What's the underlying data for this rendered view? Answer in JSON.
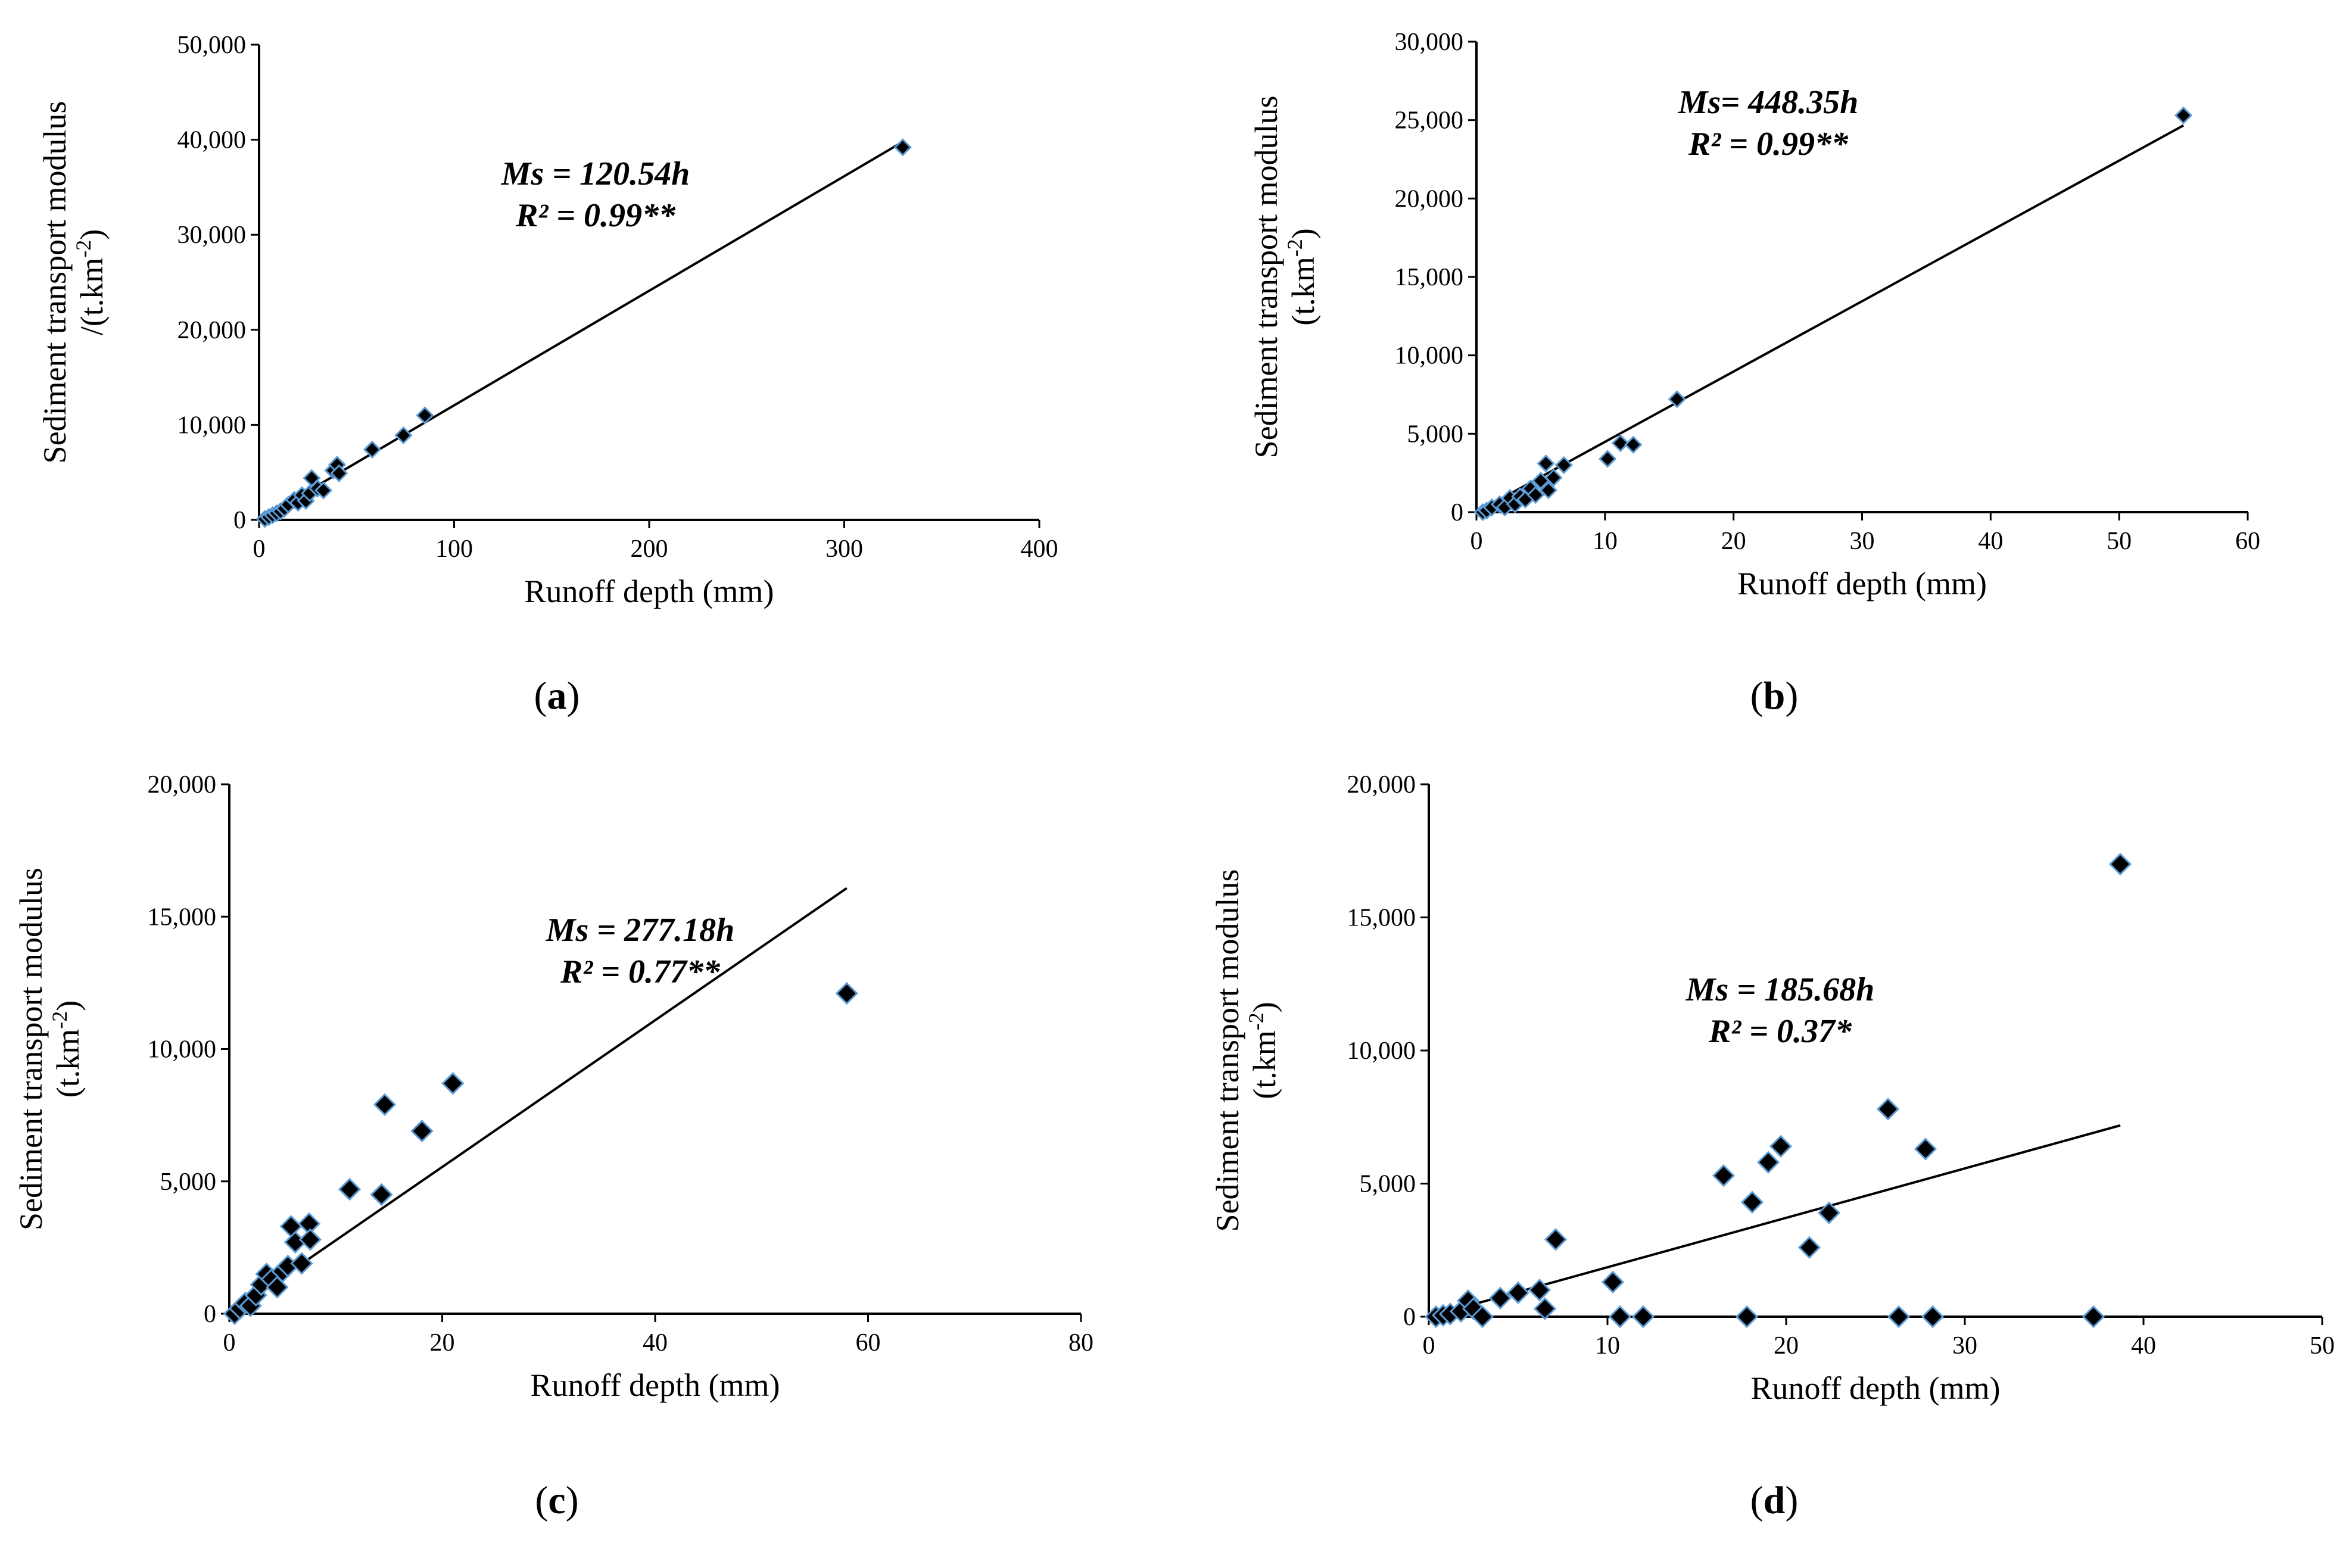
{
  "chart_data": [
    {
      "type": "scatter",
      "panel_label": "a",
      "xlabel": "Runoff depth (mm)",
      "ylabel_line1": "Sediment transport modulus",
      "ylabel_line2": "/(t.km",
      "ylabel_sup": "-2",
      "ylabel_close": ")",
      "xlim": [
        0,
        400
      ],
      "ylim": [
        0,
        50000
      ],
      "xticks": [
        0,
        100,
        200,
        300,
        400
      ],
      "xtick_labels": [
        "0",
        "100",
        "200",
        "300",
        "400"
      ],
      "yticks": [
        0,
        10000,
        20000,
        30000,
        40000,
        50000
      ],
      "ytick_labels": [
        "0",
        "10,000",
        "20,000",
        "30,000",
        "40,000",
        "50,000"
      ],
      "equation": "Ms = 120.54h",
      "r2": "R² = 0.99**",
      "trendline": {
        "slope": 120.54,
        "x_start": 0,
        "x_end": 330
      },
      "points": [
        [
          3,
          100
        ],
        [
          5,
          300
        ],
        [
          7,
          500
        ],
        [
          9,
          700
        ],
        [
          11,
          900
        ],
        [
          13,
          1200
        ],
        [
          15,
          1600
        ],
        [
          18,
          2100
        ],
        [
          20,
          1800
        ],
        [
          22,
          2600
        ],
        [
          24,
          2000
        ],
        [
          26,
          2800
        ],
        [
          27,
          4400
        ],
        [
          30,
          3300
        ],
        [
          33,
          3100
        ],
        [
          38,
          5200
        ],
        [
          40,
          5800
        ],
        [
          41,
          4900
        ],
        [
          58,
          7400
        ],
        [
          74,
          8900
        ],
        [
          85,
          11000
        ],
        [
          330,
          39200
        ]
      ],
      "marker_color": "#000000",
      "marker_edge": "#5b9bd5"
    },
    {
      "type": "scatter",
      "panel_label": "b",
      "xlabel": "Runoff depth (mm)",
      "ylabel_line1": "Sediment transport modulus",
      "ylabel_line2": "(t.km",
      "ylabel_sup": "-2",
      "ylabel_close": ")",
      "xlim": [
        0,
        60
      ],
      "ylim": [
        0,
        30000
      ],
      "xticks": [
        0,
        10,
        20,
        30,
        40,
        50,
        60
      ],
      "xtick_labels": [
        "0",
        "10",
        "20",
        "30",
        "40",
        "50",
        "60"
      ],
      "yticks": [
        0,
        5000,
        10000,
        15000,
        20000,
        25000,
        30000
      ],
      "ytick_labels": [
        "0",
        "5,000",
        "10,000",
        "15,000",
        "20,000",
        "25,000",
        "30,000"
      ],
      "equation": "Ms= 448.35h",
      "r2": "R² = 0.99**",
      "trendline": {
        "slope": 448.35,
        "x_start": 0,
        "x_end": 55
      },
      "points": [
        [
          0.5,
          0
        ],
        [
          0.8,
          100
        ],
        [
          1.2,
          300
        ],
        [
          1.8,
          500
        ],
        [
          2.2,
          300
        ],
        [
          2.6,
          900
        ],
        [
          3,
          500
        ],
        [
          3.4,
          1000
        ],
        [
          3.8,
          800
        ],
        [
          4.2,
          1500
        ],
        [
          4.6,
          1100
        ],
        [
          5,
          2000
        ],
        [
          5.4,
          3100
        ],
        [
          5.6,
          1400
        ],
        [
          6,
          2200
        ],
        [
          6.8,
          3000
        ],
        [
          10.2,
          3400
        ],
        [
          11.2,
          4400
        ],
        [
          12.2,
          4300
        ],
        [
          15.6,
          7200
        ],
        [
          55,
          25300
        ]
      ],
      "marker_color": "#000000",
      "marker_edge": "#5b9bd5"
    },
    {
      "type": "scatter",
      "panel_label": "c",
      "xlabel": "Runoff depth (mm)",
      "ylabel_line1": "Sediment transport modulus",
      "ylabel_line2": "(t.km",
      "ylabel_sup": "-2",
      "ylabel_close": ")",
      "xlim": [
        0,
        80
      ],
      "ylim": [
        0,
        20000
      ],
      "xticks": [
        0,
        20,
        40,
        60,
        80
      ],
      "xtick_labels": [
        "0",
        "20",
        "40",
        "60",
        "80"
      ],
      "yticks": [
        0,
        5000,
        10000,
        15000,
        20000
      ],
      "ytick_labels": [
        "0",
        "5,000",
        "10,000",
        "15,000",
        "20,000"
      ],
      "equation": "Ms = 277.18h",
      "r2": "R² = 0.77**",
      "trendline": {
        "slope": 277.18,
        "x_start": 0,
        "x_end": 58
      },
      "points": [
        [
          0.5,
          0
        ],
        [
          1,
          200
        ],
        [
          1.5,
          400
        ],
        [
          2,
          300
        ],
        [
          2.5,
          700
        ],
        [
          3,
          1100
        ],
        [
          3.5,
          1500
        ],
        [
          4,
          1300
        ],
        [
          4.5,
          1000
        ],
        [
          5,
          1600
        ],
        [
          5.5,
          1800
        ],
        [
          5.8,
          3300
        ],
        [
          6.2,
          2700
        ],
        [
          6.8,
          1900
        ],
        [
          7.5,
          3400
        ],
        [
          7.6,
          2800
        ],
        [
          11.3,
          4700
        ],
        [
          14.3,
          4500
        ],
        [
          14.6,
          7900
        ],
        [
          18.1,
          6900
        ],
        [
          21,
          8700
        ],
        [
          58,
          12100
        ]
      ],
      "marker_color": "#000000",
      "marker_edge": "#5b9bd5"
    },
    {
      "type": "scatter",
      "panel_label": "d",
      "xlabel": "Runoff depth (mm)",
      "ylabel_line1": "Sediment transport modulus",
      "ylabel_line2": "(t.km",
      "ylabel_sup": "-2",
      "ylabel_close": ")",
      "xlim": [
        0,
        50
      ],
      "ylim": [
        0,
        20000
      ],
      "xticks": [
        0,
        10,
        20,
        30,
        40,
        50
      ],
      "xtick_labels": [
        "0",
        "10",
        "20",
        "30",
        "40",
        "50"
      ],
      "yticks": [
        0,
        5000,
        10000,
        15000,
        20000
      ],
      "ytick_labels": [
        "0",
        "5,000",
        "10,000",
        "15,000",
        "20,000"
      ],
      "equation": "Ms = 185.68h",
      "r2": "R² = 0.37*",
      "trendline": {
        "slope": 185.68,
        "x_start": 0,
        "x_end": 38.7
      },
      "points": [
        [
          0.4,
          0
        ],
        [
          0.8,
          50
        ],
        [
          1.2,
          100
        ],
        [
          1.8,
          200
        ],
        [
          2.2,
          600
        ],
        [
          2.5,
          300
        ],
        [
          3,
          0
        ],
        [
          4,
          700
        ],
        [
          5,
          900
        ],
        [
          6.2,
          1000
        ],
        [
          6.5,
          300
        ],
        [
          7.1,
          2900
        ],
        [
          10.3,
          1300
        ],
        [
          10.7,
          0
        ],
        [
          12,
          0
        ],
        [
          16.5,
          5300
        ],
        [
          17.8,
          0
        ],
        [
          18.1,
          4300
        ],
        [
          19,
          5800
        ],
        [
          19.7,
          6400
        ],
        [
          21.3,
          2600
        ],
        [
          22.4,
          3900
        ],
        [
          25.7,
          7800
        ],
        [
          26.3,
          0
        ],
        [
          27.8,
          6300
        ],
        [
          28.2,
          0
        ],
        [
          37.2,
          0
        ],
        [
          38.7,
          17000
        ]
      ],
      "marker_color": "#000000",
      "marker_edge": "#5b9bd5"
    }
  ]
}
